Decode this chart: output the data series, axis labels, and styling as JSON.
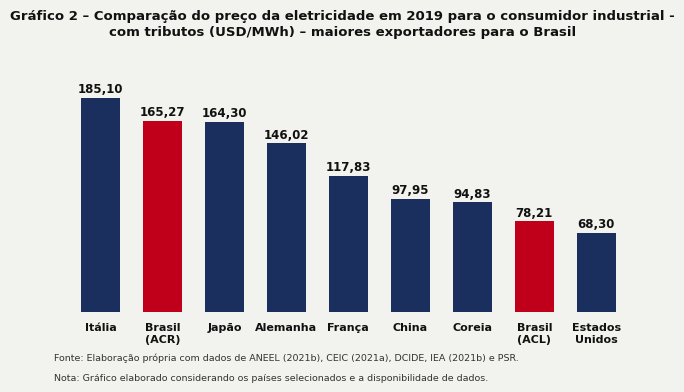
{
  "title_line1": "Gráfico 2 – Comparação do preço da eletricidade em 2019 para o consumidor industrial -",
  "title_line2": "com tributos (USD/MWh) – maiores exportadores para o Brasil",
  "categories": [
    "Itália",
    "Brasil\n(ACR)",
    "Japão",
    "Alemanha",
    "França",
    "China",
    "Coreia",
    "Brasil\n(ACL)",
    "Estados\nUnidos"
  ],
  "values": [
    185.1,
    165.27,
    164.3,
    146.02,
    117.83,
    97.95,
    94.83,
    78.21,
    68.3
  ],
  "bar_colors": [
    "#1a2f5e",
    "#c0001a",
    "#1a2f5e",
    "#1a2f5e",
    "#1a2f5e",
    "#1a2f5e",
    "#1a2f5e",
    "#c0001a",
    "#1a2f5e"
  ],
  "footnote_line1": "Fonte: Elaboração própria com dados de ANEEL (2021b), CEIC (2021a), DCIDE, IEA (2021b) e PSR.",
  "footnote_line2": "Nota: Gráfico elaborado considerando os países selecionados e a disponibilidade de dados.",
  "background_color": "#f2f2ee",
  "ylim": [
    0,
    215
  ],
  "value_fontsize": 8.5,
  "xtick_fontsize": 8.0,
  "title_fontsize": 9.5,
  "footnote_fontsize": 6.8,
  "bar_width": 0.62
}
